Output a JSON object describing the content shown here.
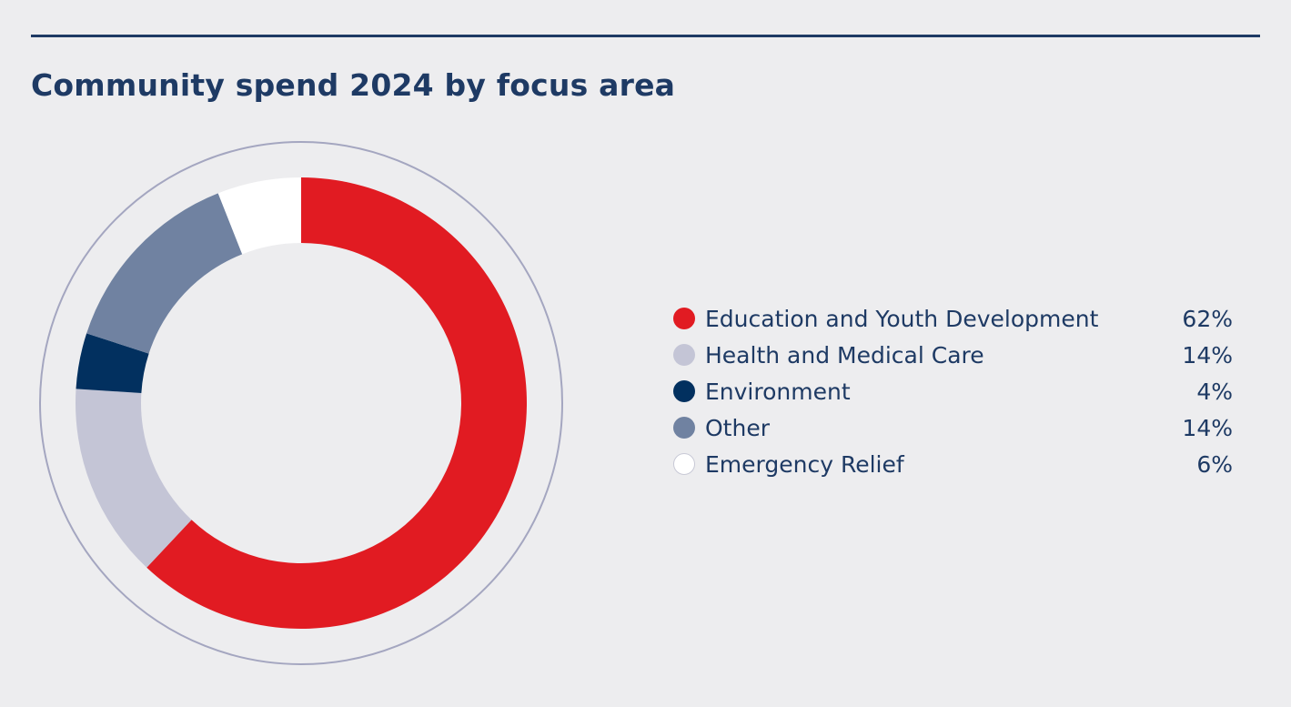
{
  "title": "Community spend 2024 by focus area",
  "colors": {
    "background": "#ededef",
    "text": "#1e3a64",
    "rule": "#1e3a64",
    "outer_ring": "#a4a6c0"
  },
  "chart_data": {
    "type": "pie",
    "donut": true,
    "title": "Community spend 2024 by focus area",
    "unit": "%",
    "legend_position": "right",
    "series": [
      {
        "label": "Education and Youth Development",
        "value": 62,
        "display": "62%",
        "color": "#e11b22"
      },
      {
        "label": "Health and Medical Care",
        "value": 14,
        "display": "14%",
        "color": "#c4c5d6"
      },
      {
        "label": "Environment",
        "value": 4,
        "display": "4%",
        "color": "#02305f"
      },
      {
        "label": "Other",
        "value": 14,
        "display": "14%",
        "color": "#7082a1"
      },
      {
        "label": "Emergency Relief",
        "value": 6,
        "display": "6%",
        "color": "#ffffff"
      }
    ]
  }
}
